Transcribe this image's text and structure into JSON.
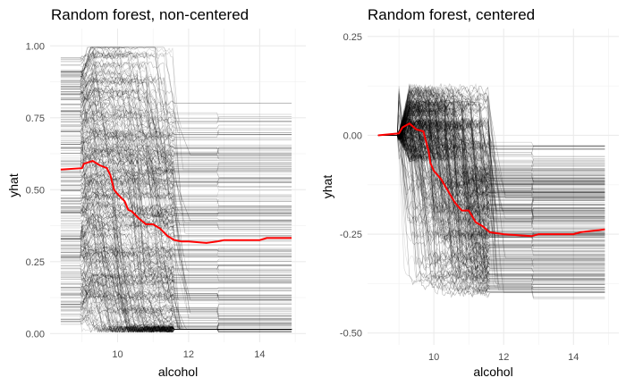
{
  "chart_data": [
    {
      "type": "line",
      "title": "Random forest, non-centered",
      "xlabel": "alcohol",
      "ylabel": "yhat",
      "xlim": [
        8.1,
        15.3
      ],
      "ylim": [
        -0.03,
        1.06
      ],
      "xticks": [
        "10",
        "12",
        "14"
      ],
      "xtick_values": [
        10,
        12,
        14
      ],
      "yticks": [
        "0.00",
        "0.25",
        "0.50",
        "0.75",
        "1.00"
      ],
      "ytick_values": [
        0,
        0.25,
        0.5,
        0.75,
        1.0
      ],
      "grid": true,
      "ice_curves": {
        "color": "#000000",
        "centered": false
      },
      "pdp": {
        "color": "#ff0000",
        "x": [
          8.4,
          9.0,
          9.05,
          9.3,
          9.5,
          9.7,
          9.8,
          9.9,
          10.0,
          10.2,
          10.3,
          10.4,
          10.6,
          10.8,
          11.0,
          11.2,
          11.4,
          11.6,
          11.8,
          12.0,
          12.5,
          12.8,
          13.0,
          13.5,
          14.0,
          14.2,
          14.9
        ],
        "y": [
          0.57,
          0.575,
          0.59,
          0.6,
          0.585,
          0.575,
          0.55,
          0.5,
          0.485,
          0.46,
          0.43,
          0.425,
          0.4,
          0.38,
          0.38,
          0.365,
          0.34,
          0.325,
          0.32,
          0.32,
          0.315,
          0.32,
          0.325,
          0.325,
          0.325,
          0.332,
          0.332
        ]
      }
    },
    {
      "type": "line",
      "title": "Random forest, centered",
      "xlabel": "alcohol",
      "ylabel": "yhat",
      "xlim": [
        8.1,
        15.3
      ],
      "ylim": [
        -0.53,
        0.27
      ],
      "xticks": [
        "10",
        "12",
        "14"
      ],
      "xtick_values": [
        10,
        12,
        14
      ],
      "yticks": [
        "-0.50",
        "-0.25",
        "0.00",
        "0.25"
      ],
      "ytick_values": [
        -0.5,
        -0.25,
        0,
        0.25
      ],
      "grid": true,
      "ice_curves": {
        "color": "#000000",
        "centered": true
      },
      "pdp": {
        "color": "#ff0000",
        "x": [
          8.4,
          9.0,
          9.1,
          9.3,
          9.5,
          9.7,
          9.85,
          9.9,
          10.0,
          10.2,
          10.4,
          10.6,
          10.8,
          11.0,
          11.2,
          11.4,
          11.6,
          12.0,
          12.8,
          13.0,
          14.0,
          14.2,
          14.9
        ],
        "y": [
          0,
          0.005,
          0.02,
          0.03,
          0.015,
          0.01,
          -0.04,
          -0.07,
          -0.09,
          -0.11,
          -0.14,
          -0.17,
          -0.19,
          -0.19,
          -0.22,
          -0.23,
          -0.245,
          -0.25,
          -0.255,
          -0.25,
          -0.25,
          -0.245,
          -0.238
        ]
      }
    }
  ]
}
